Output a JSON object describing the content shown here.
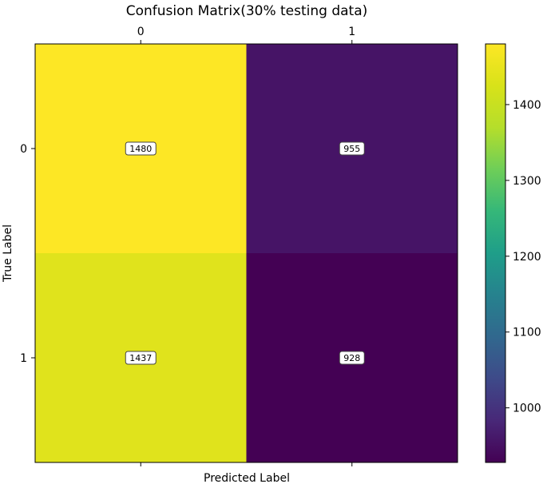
{
  "chart_data": {
    "type": "heatmap",
    "title": "Confusion Matrix(30% testing data)",
    "xlabel": "Predicted Label",
    "ylabel": "True Label",
    "x_categories": [
      "0",
      "1"
    ],
    "y_categories": [
      "0",
      "1"
    ],
    "values": [
      [
        1480,
        955
      ],
      [
        1437,
        928
      ]
    ],
    "colormap": "viridis",
    "color_range": [
      928,
      1480
    ],
    "colorbar_ticks": [
      1000,
      1100,
      1200,
      1300,
      1400
    ],
    "colorbar_tick_labels": [
      "1000",
      "1100",
      "1200",
      "1300",
      "1400"
    ],
    "x_tick_position": "top",
    "grid": false
  }
}
